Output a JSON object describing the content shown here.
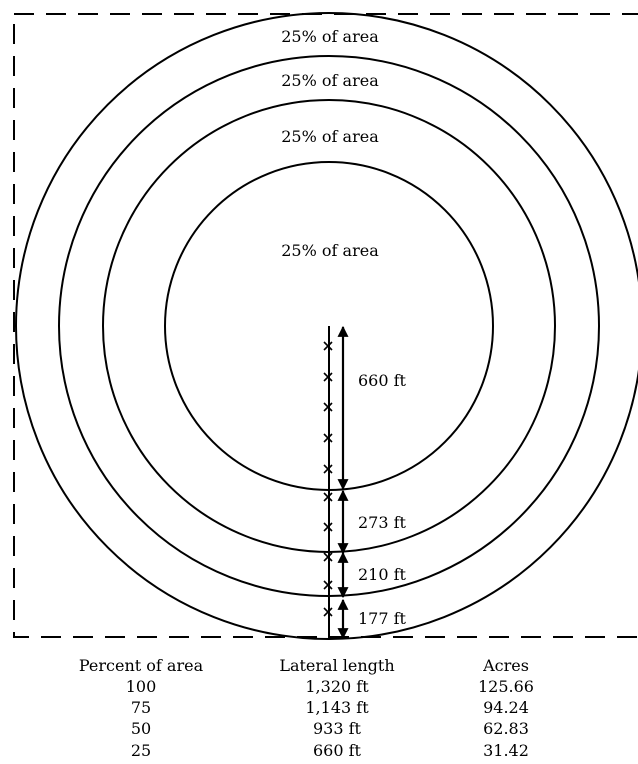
{
  "zones": [
    {
      "label": "25% of area"
    },
    {
      "label": "25% of area"
    },
    {
      "label": "25% of area"
    },
    {
      "label": "25% of area"
    }
  ],
  "dimensions": [
    {
      "label": "660 ft"
    },
    {
      "label": "273 ft"
    },
    {
      "label": "210 ft"
    },
    {
      "label": "177 ft"
    }
  ],
  "table": {
    "headers": [
      "Percent of area",
      "Lateral length",
      "Acres"
    ],
    "rows": [
      [
        "100",
        "1,320 ft",
        "125.66"
      ],
      [
        "75",
        "1,143 ft",
        "94.24"
      ],
      [
        "50",
        "933 ft",
        "62.83"
      ],
      [
        "25",
        "660 ft",
        "31.42"
      ]
    ]
  },
  "colors": {
    "line": "#000000",
    "background": "#ffffff"
  }
}
